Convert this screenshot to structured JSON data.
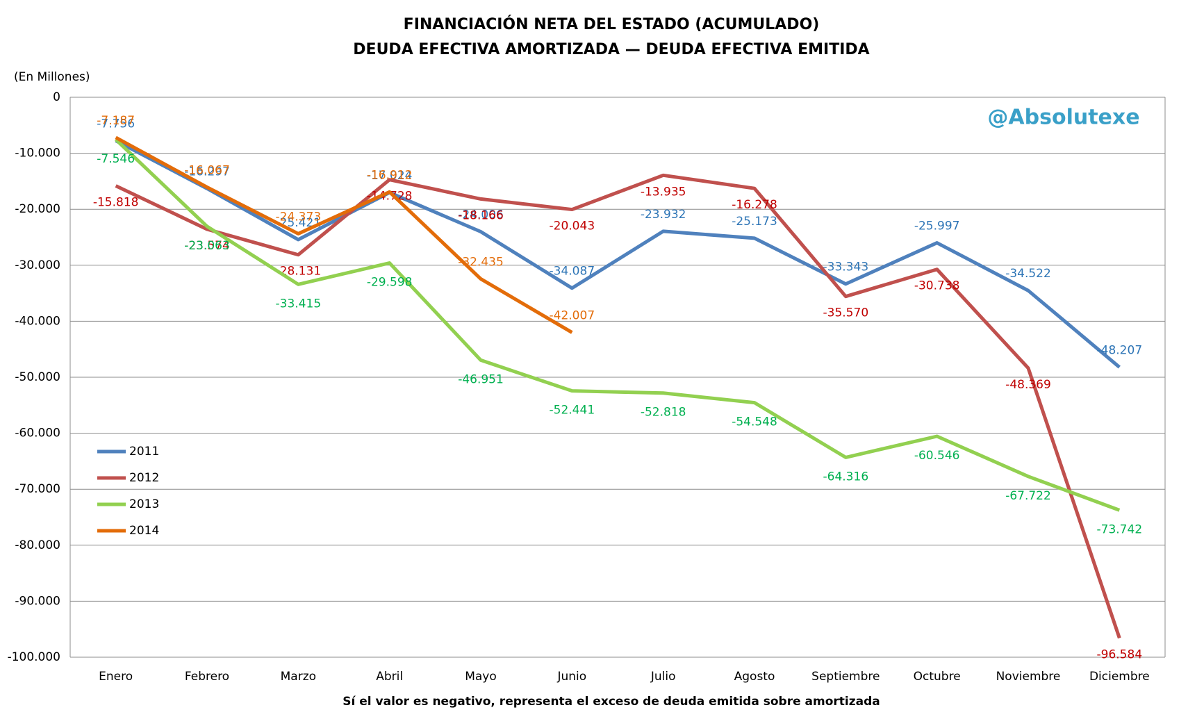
{
  "chart_data": {
    "type": "line",
    "title": "FINANCIACIÓN NETA DEL ESTADO (ACUMULADO)",
    "subtitle": "DEUDA EFECTIVA AMORTIZADA — DEUDA EFECTIVA EMITIDA",
    "y_axis_label": "(En Millones)",
    "x_axis_label": "Sí el valor es negativo, representa el exceso de deuda emitida sobre amortizada",
    "watermark": "@Absolutexe",
    "categories": [
      "Enero",
      "Febrero",
      "Marzo",
      "Abril",
      "Mayo",
      "Junio",
      "Julio",
      "Agosto",
      "Septiembre",
      "Octubre",
      "Noviembre",
      "Diciembre"
    ],
    "ylim": [
      -100000,
      0
    ],
    "yticks": [
      {
        "value": -100000,
        "label": "-100.000"
      },
      {
        "value": -90000,
        "label": "-90.000"
      },
      {
        "value": -80000,
        "label": "-80.000"
      },
      {
        "value": -70000,
        "label": "-70.000"
      },
      {
        "value": -60000,
        "label": "-60.000"
      },
      {
        "value": -50000,
        "label": "-50.000"
      },
      {
        "value": -40000,
        "label": "-40.000"
      },
      {
        "value": -30000,
        "label": "-30.000"
      },
      {
        "value": -20000,
        "label": "-20.000"
      },
      {
        "value": -10000,
        "label": "-10.000"
      },
      0
    ],
    "grid": true,
    "legend": "left",
    "series": [
      {
        "name": "2011",
        "color": "#4f81bd",
        "label_color": "#2e75b6",
        "values": [
          -7756,
          -16297,
          -25421,
          -17024,
          -24006,
          -34087,
          -23932,
          -25173,
          -33343,
          -25997,
          -34522,
          -48207
        ],
        "value_labels": [
          "-7.756",
          "-16.297",
          "-25.421",
          "-17.024",
          "-24.006",
          "-34.087",
          "-23.932",
          "-25.173",
          "-33.343",
          "-25.997",
          "-34.522",
          "-48.207"
        ]
      },
      {
        "name": "2012",
        "color": "#c0504d",
        "label_color": "#c00000",
        "values": [
          -15818,
          -23574,
          -28131,
          -14728,
          -18166,
          -20043,
          -13935,
          -16278,
          -35570,
          -30738,
          -48369,
          -96584
        ],
        "value_labels": [
          "-15.818",
          "-23.574",
          "-28.131",
          "-14.728",
          "-18.166",
          "-20.043",
          "-13.935",
          "-16.278",
          "-35.570",
          "-30.738",
          "-48.369",
          "-96.584"
        ]
      },
      {
        "name": "2013",
        "color": "#92d050",
        "label_color": "#00b050",
        "values": [
          -7546,
          -23063,
          -33415,
          -29598,
          -46951,
          -52441,
          -52818,
          -54548,
          -64316,
          -60546,
          -67722,
          -73742
        ],
        "value_labels": [
          "-7.546",
          "-23.063",
          "-33.415",
          "-29.598",
          "-46.951",
          "-52.441",
          "-52.818",
          "-54.548",
          "-64.316",
          "-60.546",
          "-67.722",
          "-73.742"
        ]
      },
      {
        "name": "2014",
        "color": "#e36c09",
        "label_color": "#e36c09",
        "values": [
          -7187,
          -16067,
          -24373,
          -16912,
          -32435,
          -42007,
          null,
          null,
          null,
          null,
          null,
          null
        ],
        "value_labels": [
          "-7.187",
          "-16.067",
          "-24.373",
          "-16.912",
          "-32.435",
          "-42.007",
          null,
          null,
          null,
          null,
          null,
          null
        ]
      }
    ]
  }
}
